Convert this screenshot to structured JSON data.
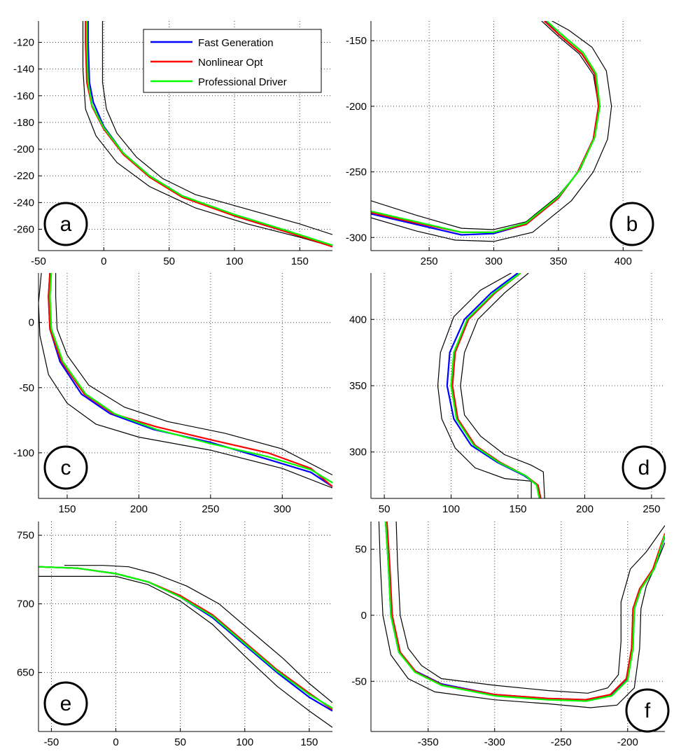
{
  "colors": {
    "fast_generation": "#0000ff",
    "nonlinear_opt": "#ff0000",
    "professional_driver": "#00ff00",
    "track_boundary": "#000000",
    "grid": "#444444"
  },
  "legend": {
    "items": [
      {
        "label": "Fast Generation",
        "color": "#0000ff"
      },
      {
        "label": "Nonlinear Opt",
        "color": "#ff0000"
      },
      {
        "label": "Professional Driver",
        "color": "#00ff00"
      }
    ]
  },
  "chart_data": [
    {
      "type": "line",
      "panel_label": "a",
      "xlim": [
        -50,
        175
      ],
      "ylim": [
        -276,
        -104
      ],
      "xticks": [
        -50,
        0,
        50,
        100,
        150
      ],
      "yticks": [
        -120,
        -140,
        -160,
        -180,
        -200,
        -220,
        -240,
        -260
      ],
      "grid": true,
      "legend_position": "top-right",
      "series": [
        {
          "name": "Fast Generation",
          "color": "#0000ff",
          "x": [
            -12,
            -12,
            -11,
            -8,
            0,
            15,
            35,
            60,
            100,
            140,
            175
          ],
          "y": [
            -104,
            -120,
            -150,
            -165,
            -183,
            -203,
            -220,
            -235,
            -250,
            -262,
            -273
          ]
        },
        {
          "name": "Nonlinear Opt",
          "color": "#ff0000",
          "x": [
            -14,
            -14,
            -13,
            -9,
            0,
            15,
            35,
            60,
            100,
            140,
            175
          ],
          "y": [
            -104,
            -120,
            -150,
            -168,
            -185,
            -204,
            -221,
            -236,
            -250,
            -262,
            -273
          ]
        },
        {
          "name": "Professional Driver",
          "color": "#00ff00",
          "x": [
            -13,
            -13,
            -12,
            -9,
            0,
            15,
            35,
            60,
            100,
            140,
            175
          ],
          "y": [
            -104,
            -120,
            -150,
            -167,
            -184,
            -203,
            -220,
            -235,
            -249,
            -261,
            -272
          ]
        }
      ],
      "boundaries": [
        {
          "x": [
            -16,
            -16,
            -14,
            -6,
            10,
            35,
            70,
            110,
            150,
            175
          ],
          "y": [
            -104,
            -140,
            -170,
            -190,
            -210,
            -228,
            -244,
            -256,
            -266,
            -273
          ]
        },
        {
          "x": [
            -1,
            -1,
            2,
            10,
            25,
            45,
            70,
            110,
            150,
            175
          ],
          "y": [
            -104,
            -150,
            -170,
            -188,
            -206,
            -222,
            -234,
            -245,
            -256,
            -264
          ]
        }
      ]
    },
    {
      "type": "line",
      "panel_label": "b",
      "xlim": [
        205,
        415
      ],
      "ylim": [
        -310,
        -135
      ],
      "xticks": [
        250,
        300,
        350,
        400
      ],
      "yticks": [
        -150,
        -200,
        -250,
        -300
      ],
      "grid": true,
      "series": [
        {
          "name": "Fast Generation",
          "color": "#0000ff",
          "x": [
            205,
            240,
            275,
            300,
            325,
            350,
            365,
            377,
            381,
            378,
            368,
            350,
            340
          ],
          "y": [
            -282,
            -290,
            -298,
            -297,
            -290,
            -270,
            -250,
            -225,
            -200,
            -175,
            -160,
            -145,
            -135
          ]
        },
        {
          "name": "Nonlinear Opt",
          "color": "#ff0000",
          "x": [
            205,
            240,
            275,
            300,
            325,
            350,
            365,
            377,
            381,
            378,
            368,
            350,
            339
          ],
          "y": [
            -281,
            -289,
            -296,
            -296,
            -290,
            -270,
            -250,
            -225,
            -200,
            -175,
            -160,
            -145,
            -135
          ]
        },
        {
          "name": "Professional Driver",
          "color": "#00ff00",
          "x": [
            205,
            240,
            275,
            300,
            325,
            350,
            366,
            378,
            382,
            379,
            369,
            351,
            341
          ],
          "y": [
            -280,
            -288,
            -296,
            -296,
            -289,
            -269,
            -249,
            -224,
            -200,
            -175,
            -159,
            -144,
            -135
          ]
        }
      ],
      "boundaries": [
        {
          "x": [
            205,
            240,
            275,
            300,
            325,
            350,
            367,
            378,
            381,
            377,
            366,
            349,
            337
          ],
          "y": [
            -272,
            -283,
            -293,
            -294,
            -288,
            -268,
            -248,
            -224,
            -200,
            -176,
            -160,
            -146,
            -135
          ]
        },
        {
          "x": [
            205,
            240,
            270,
            300,
            330,
            360,
            377,
            388,
            391,
            387,
            376,
            358,
            345
          ],
          "y": [
            -285,
            -295,
            -302,
            -303,
            -296,
            -272,
            -250,
            -225,
            -200,
            -173,
            -155,
            -142,
            -135
          ]
        }
      ]
    },
    {
      "type": "line",
      "panel_label": "c",
      "xlim": [
        130,
        335
      ],
      "ylim": [
        -135,
        38
      ],
      "xticks": [
        150,
        200,
        250,
        300
      ],
      "yticks": [
        0,
        -50,
        -100
      ],
      "grid": true,
      "series": [
        {
          "name": "Fast Generation",
          "color": "#0000ff",
          "x": [
            138,
            137,
            138,
            145,
            160,
            180,
            210,
            250,
            290,
            320,
            335
          ],
          "y": [
            38,
            20,
            -5,
            -30,
            -55,
            -70,
            -82,
            -92,
            -105,
            -115,
            -126
          ]
        },
        {
          "name": "Nonlinear Opt",
          "color": "#ff0000",
          "x": [
            138,
            137,
            138,
            146,
            162,
            182,
            212,
            250,
            290,
            320,
            335
          ],
          "y": [
            38,
            20,
            -5,
            -30,
            -55,
            -70,
            -80,
            -90,
            -100,
            -112,
            -126
          ]
        },
        {
          "name": "Professional Driver",
          "color": "#00ff00",
          "x": [
            139,
            138,
            139,
            147,
            163,
            183,
            212,
            250,
            290,
            320,
            335
          ],
          "y": [
            38,
            20,
            -5,
            -30,
            -55,
            -70,
            -82,
            -93,
            -103,
            -113,
            -123
          ]
        }
      ],
      "boundaries": [
        {
          "x": [
            132,
            130,
            131,
            137,
            150,
            170,
            200,
            250,
            300,
            335
          ],
          "y": [
            38,
            15,
            -10,
            -40,
            -62,
            -78,
            -88,
            -98,
            -112,
            -127
          ]
        },
        {
          "x": [
            142,
            142,
            143,
            150,
            165,
            190,
            220,
            260,
            300,
            335
          ],
          "y": [
            38,
            20,
            -5,
            -25,
            -48,
            -65,
            -76,
            -85,
            -97,
            -117
          ]
        }
      ]
    },
    {
      "type": "line",
      "panel_label": "d",
      "xlim": [
        40,
        260
      ],
      "ylim": [
        265,
        435
      ],
      "xticks": [
        50,
        100,
        150,
        200,
        250
      ],
      "yticks": [
        400,
        350,
        300
      ],
      "grid": true,
      "series": [
        {
          "name": "Fast Generation",
          "color": "#0000ff",
          "x": [
            150,
            130,
            110,
            99,
            97,
            102,
            115,
            135,
            155,
            165,
            167
          ],
          "y": [
            435,
            420,
            400,
            375,
            350,
            325,
            305,
            292,
            282,
            275,
            265
          ]
        },
        {
          "name": "Nonlinear Opt",
          "color": "#ff0000",
          "x": [
            152,
            133,
            113,
            103,
            101,
            105,
            118,
            137,
            156,
            165,
            167
          ],
          "y": [
            435,
            420,
            400,
            375,
            350,
            325,
            305,
            292,
            282,
            275,
            265
          ]
        },
        {
          "name": "Professional Driver",
          "color": "#00ff00",
          "x": [
            152,
            132,
            112,
            102,
            100,
            104,
            117,
            136,
            156,
            164,
            166
          ],
          "y": [
            435,
            420,
            400,
            375,
            350,
            325,
            305,
            292,
            282,
            275,
            265
          ]
        }
      ],
      "boundaries": [
        {
          "x": [
            145,
            122,
            102,
            92,
            90,
            93,
            103,
            118,
            140,
            160,
            160
          ],
          "y": [
            435,
            422,
            402,
            375,
            350,
            325,
            303,
            288,
            280,
            278,
            265
          ]
        },
        {
          "x": [
            158,
            140,
            120,
            110,
            107,
            110,
            122,
            140,
            160,
            169,
            170
          ],
          "y": [
            435,
            420,
            400,
            375,
            350,
            328,
            312,
            298,
            290,
            285,
            265
          ]
        }
      ]
    },
    {
      "type": "line",
      "panel_label": "e",
      "xlim": [
        -60,
        168
      ],
      "ylim": [
        607,
        760
      ],
      "xticks": [
        -50,
        0,
        50,
        100,
        150
      ],
      "yticks": [
        750,
        700,
        650
      ],
      "grid": true,
      "series": [
        {
          "name": "Fast Generation",
          "color": "#0000ff",
          "x": [
            -60,
            -30,
            0,
            25,
            50,
            75,
            100,
            125,
            150,
            168
          ],
          "y": [
            727,
            726,
            722,
            716,
            705,
            690,
            670,
            650,
            632,
            622
          ]
        },
        {
          "name": "Nonlinear Opt",
          "color": "#ff0000",
          "x": [
            -60,
            -30,
            0,
            25,
            50,
            75,
            100,
            125,
            150,
            168
          ],
          "y": [
            727,
            726,
            722,
            716,
            706,
            692,
            672,
            652,
            635,
            623
          ]
        },
        {
          "name": "Professional Driver",
          "color": "#00ff00",
          "x": [
            -60,
            -30,
            0,
            25,
            50,
            75,
            100,
            125,
            150,
            168
          ],
          "y": [
            727,
            726,
            722,
            716,
            705,
            691,
            671,
            651,
            634,
            624
          ]
        }
      ],
      "boundaries": [
        {
          "x": [
            -60,
            -30,
            0,
            25,
            50,
            75,
            100,
            125,
            150,
            168
          ],
          "y": [
            720,
            720,
            720,
            714,
            702,
            685,
            662,
            640,
            622,
            610
          ]
        },
        {
          "x": [
            -40,
            -10,
            10,
            30,
            55,
            80,
            105,
            130,
            150,
            168
          ],
          "y": [
            728,
            728,
            727,
            722,
            713,
            700,
            680,
            660,
            642,
            628
          ]
        }
      ]
    },
    {
      "type": "line",
      "panel_label": "f",
      "xlim": [
        -393,
        -172
      ],
      "ylim": [
        -88,
        71
      ],
      "xticks": [
        -350,
        -300,
        -250,
        -200
      ],
      "yticks": [
        50,
        0,
        -50
      ],
      "grid": true,
      "series": [
        {
          "name": "Fast Generation",
          "color": "#0000ff",
          "x": [
            -382,
            -380,
            -378,
            -372,
            -360,
            -340,
            -300,
            -260,
            -230,
            -212,
            -200,
            -196,
            -195,
            -190,
            -180,
            -172
          ],
          "y": [
            71,
            40,
            0,
            -28,
            -42,
            -52,
            -60,
            -63,
            -64,
            -60,
            -48,
            -25,
            5,
            20,
            35,
            60
          ]
        },
        {
          "name": "Nonlinear Opt",
          "color": "#ff0000",
          "x": [
            -381,
            -379,
            -377,
            -371,
            -359,
            -339,
            -300,
            -260,
            -232,
            -213,
            -201,
            -197,
            -196,
            -191,
            -181,
            -172
          ],
          "y": [
            71,
            40,
            0,
            -28,
            -43,
            -53,
            -60,
            -63,
            -64,
            -60,
            -48,
            -25,
            5,
            20,
            35,
            62
          ]
        },
        {
          "name": "Professional Driver",
          "color": "#00ff00",
          "x": [
            -382,
            -380,
            -378,
            -372,
            -360,
            -340,
            -300,
            -260,
            -231,
            -212,
            -200,
            -196,
            -195,
            -190,
            -180,
            -172
          ],
          "y": [
            71,
            40,
            0,
            -28,
            -43,
            -53,
            -61,
            -64,
            -65,
            -61,
            -49,
            -25,
            5,
            20,
            35,
            61
          ]
        }
      ],
      "boundaries": [
        {
          "x": [
            -387,
            -386,
            -384,
            -378,
            -365,
            -345,
            -300,
            -260,
            -228,
            -208,
            -195,
            -191,
            -190,
            -186,
            -178,
            -172
          ],
          "y": [
            71,
            40,
            0,
            -30,
            -48,
            -58,
            -64,
            -67,
            -70,
            -68,
            -55,
            -25,
            5,
            22,
            40,
            55
          ]
        },
        {
          "x": [
            -374,
            -373,
            -371,
            -365,
            -355,
            -340,
            -300,
            -260,
            -230,
            -215,
            -207,
            -205,
            -205,
            -198,
            -186,
            -172
          ],
          "y": [
            71,
            40,
            0,
            -25,
            -38,
            -48,
            -53,
            -57,
            -59,
            -55,
            -45,
            -20,
            10,
            35,
            48,
            68
          ]
        }
      ]
    }
  ]
}
